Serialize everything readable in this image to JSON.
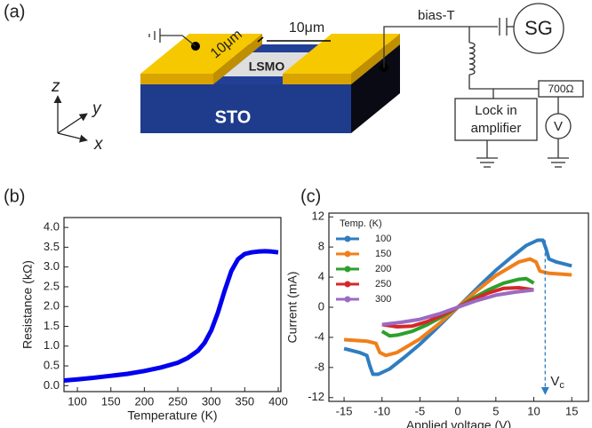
{
  "panel_labels": [
    "(a)",
    "(b)",
    "(c)"
  ],
  "diagram": {
    "width_label": "10μm",
    "length_label": "10μm",
    "channel": "LSMO",
    "substrate": "STO",
    "axes": [
      "z",
      "y",
      "x"
    ],
    "bias_tee": "bias-T",
    "source": "SG",
    "resistor": "700Ω",
    "voltmeter": "V",
    "lock_in": [
      "Lock in",
      "amplifier"
    ]
  },
  "chart_data": [
    {
      "type": "line",
      "xlabel": "Temperature (K)",
      "ylabel": "Resistance (kΩ)",
      "xlim": [
        80,
        404
      ],
      "ylim": [
        -0.15,
        4.25
      ],
      "xticks": [
        100,
        150,
        200,
        250,
        300,
        350,
        400
      ],
      "yticks": [
        {
          "value": 0,
          "label": "0.0"
        },
        0.5,
        {
          "value": 1,
          "label": "1.0"
        },
        1.5,
        {
          "value": 2,
          "label": "2.0"
        },
        2.5,
        {
          "value": 3,
          "label": "3.0"
        },
        3.5,
        {
          "value": 4,
          "label": "4.0"
        }
      ],
      "series": [
        {
          "color": "#0000ee",
          "x": [
            80,
            100,
            125,
            150,
            175,
            200,
            225,
            250,
            265,
            280,
            290,
            300,
            310,
            320,
            330,
            340,
            350,
            360,
            370,
            380,
            390,
            400
          ],
          "values": [
            0.13,
            0.16,
            0.2,
            0.25,
            0.3,
            0.37,
            0.46,
            0.58,
            0.7,
            0.88,
            1.08,
            1.4,
            1.85,
            2.4,
            2.9,
            3.2,
            3.33,
            3.37,
            3.39,
            3.4,
            3.39,
            3.37
          ]
        }
      ]
    },
    {
      "type": "line",
      "xlabel": "Applied voltage (V)",
      "ylabel": "Current (mA)",
      "xlim": [
        -17,
        17.2
      ],
      "ylim": [
        -12.5,
        12.5
      ],
      "xticks": [
        -15,
        -10,
        -5,
        0,
        5,
        10,
        15
      ],
      "yticks": [
        -12,
        -8,
        -4,
        0,
        4,
        8,
        12
      ],
      "legend_title": "Temp. (K)",
      "annotation": {
        "text": "V",
        "subscript": "c",
        "x": 11.5
      },
      "series": [
        {
          "name": "100",
          "color": "#2f7dc0",
          "x": [
            -15,
            -13,
            -12,
            -11.6,
            -11.2,
            -10.5,
            -9,
            -7,
            -5,
            -3,
            0,
            3,
            5,
            7,
            9,
            10.5,
            11.2,
            11.6,
            12,
            13,
            15
          ],
          "values": [
            -5.5,
            -6,
            -6.4,
            -7.8,
            -8.9,
            -8.9,
            -8.2,
            -6.6,
            -4.9,
            -3,
            0,
            3,
            4.9,
            6.6,
            8.2,
            8.9,
            8.9,
            7.8,
            6.4,
            6,
            5.5
          ]
        },
        {
          "name": "150",
          "color": "#f07f1a",
          "x": [
            -15,
            -12,
            -10.8,
            -10.3,
            -9.5,
            -8,
            -5,
            -2.5,
            0,
            2.5,
            5,
            8,
            9.5,
            10.3,
            10.8,
            12,
            15
          ],
          "values": [
            -4.3,
            -4.5,
            -4.8,
            -6,
            -6.4,
            -6,
            -4.2,
            -2.2,
            0,
            2.2,
            4.2,
            6,
            6.4,
            6,
            4.8,
            4.5,
            4.3
          ]
        },
        {
          "name": "200",
          "color": "#2ca02c",
          "x": [
            -10,
            -9,
            -8,
            -6,
            -4,
            -2,
            0,
            2,
            4,
            6,
            8,
            9,
            10
          ],
          "values": [
            -3.2,
            -3.8,
            -3.7,
            -3.2,
            -2.3,
            -1.2,
            0,
            1.2,
            2.3,
            3.2,
            3.7,
            3.8,
            3.2
          ]
        },
        {
          "name": "250",
          "color": "#d62728",
          "x": [
            -10,
            -8,
            -6,
            -4,
            -2,
            0,
            2,
            4,
            6,
            8,
            10
          ],
          "values": [
            -2.3,
            -2.6,
            -2.5,
            -1.9,
            -1,
            0,
            1,
            1.9,
            2.5,
            2.6,
            2.3
          ]
        },
        {
          "name": "300",
          "color": "#9b6bc3",
          "x": [
            -10,
            -7.5,
            -5,
            -2.5,
            0,
            2.5,
            5,
            7.5,
            10
          ],
          "values": [
            -2.3,
            -2,
            -1.6,
            -0.9,
            0,
            0.9,
            1.6,
            2,
            2.3
          ]
        }
      ]
    }
  ]
}
